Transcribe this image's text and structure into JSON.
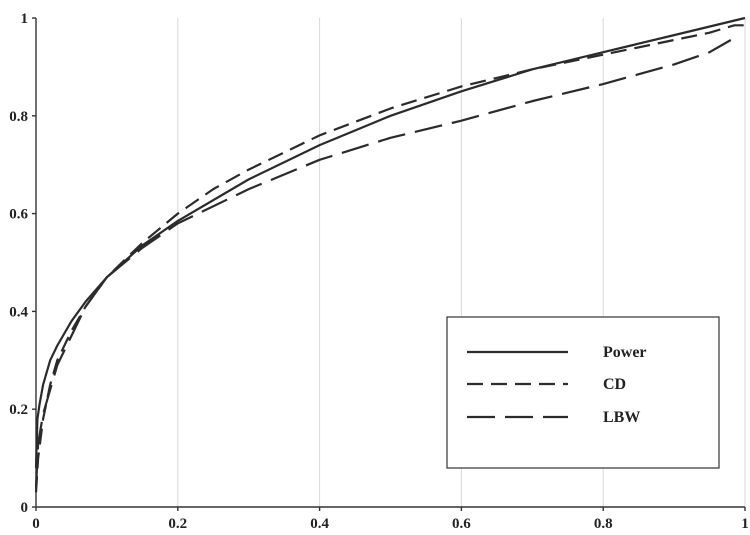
{
  "chart_data": {
    "type": "line",
    "title": "",
    "xlabel": "",
    "ylabel": "",
    "xlim": [
      0,
      1
    ],
    "ylim": [
      0,
      1
    ],
    "x_ticks": [
      "0",
      "0.2",
      "0.4",
      "0.6",
      "0.8",
      "1"
    ],
    "y_ticks": [
      "0",
      "0.2",
      "0.4",
      "0.6",
      "0.8",
      "1"
    ],
    "grid": false,
    "legend_position": "bottom-right",
    "series": [
      {
        "name": "Power",
        "dash": "solid",
        "color": "#2b2b2b",
        "x": [
          0.0,
          0.002,
          0.005,
          0.01,
          0.02,
          0.03,
          0.05,
          0.07,
          0.1,
          0.15,
          0.2,
          0.3,
          0.4,
          0.5,
          0.6,
          0.7,
          0.8,
          0.9,
          1.0
        ],
        "y": [
          0.08,
          0.18,
          0.21,
          0.25,
          0.3,
          0.33,
          0.38,
          0.42,
          0.47,
          0.535,
          0.585,
          0.67,
          0.74,
          0.8,
          0.85,
          0.895,
          0.93,
          0.965,
          1.0
        ]
      },
      {
        "name": "CD",
        "dash": "short-dash",
        "color": "#2b2b2b",
        "x": [
          0.0,
          0.003,
          0.01,
          0.02,
          0.03,
          0.05,
          0.07,
          0.1,
          0.15,
          0.2,
          0.25,
          0.3,
          0.4,
          0.5,
          0.6,
          0.7,
          0.8,
          0.9,
          0.95,
          0.985,
          1.0
        ],
        "y": [
          0.03,
          0.1,
          0.18,
          0.25,
          0.3,
          0.36,
          0.41,
          0.47,
          0.54,
          0.6,
          0.65,
          0.69,
          0.76,
          0.815,
          0.86,
          0.895,
          0.925,
          0.955,
          0.97,
          0.985,
          0.985
        ]
      },
      {
        "name": "LBW",
        "dash": "long-dash",
        "color": "#2b2b2b",
        "x": [
          0.0,
          0.003,
          0.01,
          0.02,
          0.03,
          0.05,
          0.07,
          0.1,
          0.15,
          0.2,
          0.3,
          0.4,
          0.5,
          0.6,
          0.7,
          0.8,
          0.9,
          0.95,
          0.98
        ],
        "y": [
          0.04,
          0.13,
          0.19,
          0.24,
          0.29,
          0.35,
          0.41,
          0.47,
          0.53,
          0.58,
          0.65,
          0.71,
          0.755,
          0.79,
          0.83,
          0.865,
          0.905,
          0.93,
          0.955
        ]
      }
    ]
  }
}
